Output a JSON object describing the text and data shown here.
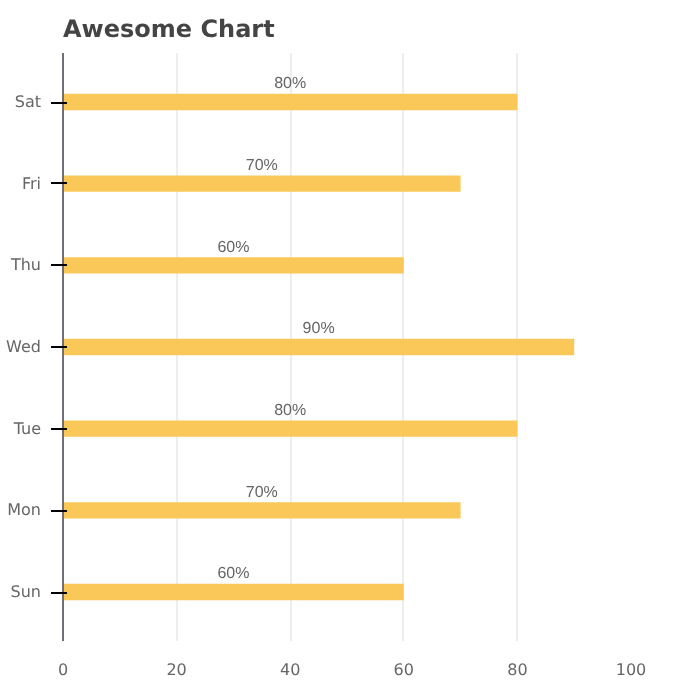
{
  "chart_data": {
    "type": "bar",
    "orientation": "horizontal",
    "title": "Awesome Chart",
    "categories": [
      "Sat",
      "Fri",
      "Thu",
      "Wed",
      "Tue",
      "Mon",
      "Sun"
    ],
    "values": [
      80,
      70,
      60,
      90,
      80,
      70,
      60
    ],
    "value_labels": [
      "80%",
      "70%",
      "60%",
      "90%",
      "80%",
      "70%",
      "60%"
    ],
    "color": "#fac858",
    "xlim": [
      0,
      100
    ],
    "xticks": [
      0,
      20,
      40,
      60,
      80,
      100
    ],
    "grid": "x"
  }
}
